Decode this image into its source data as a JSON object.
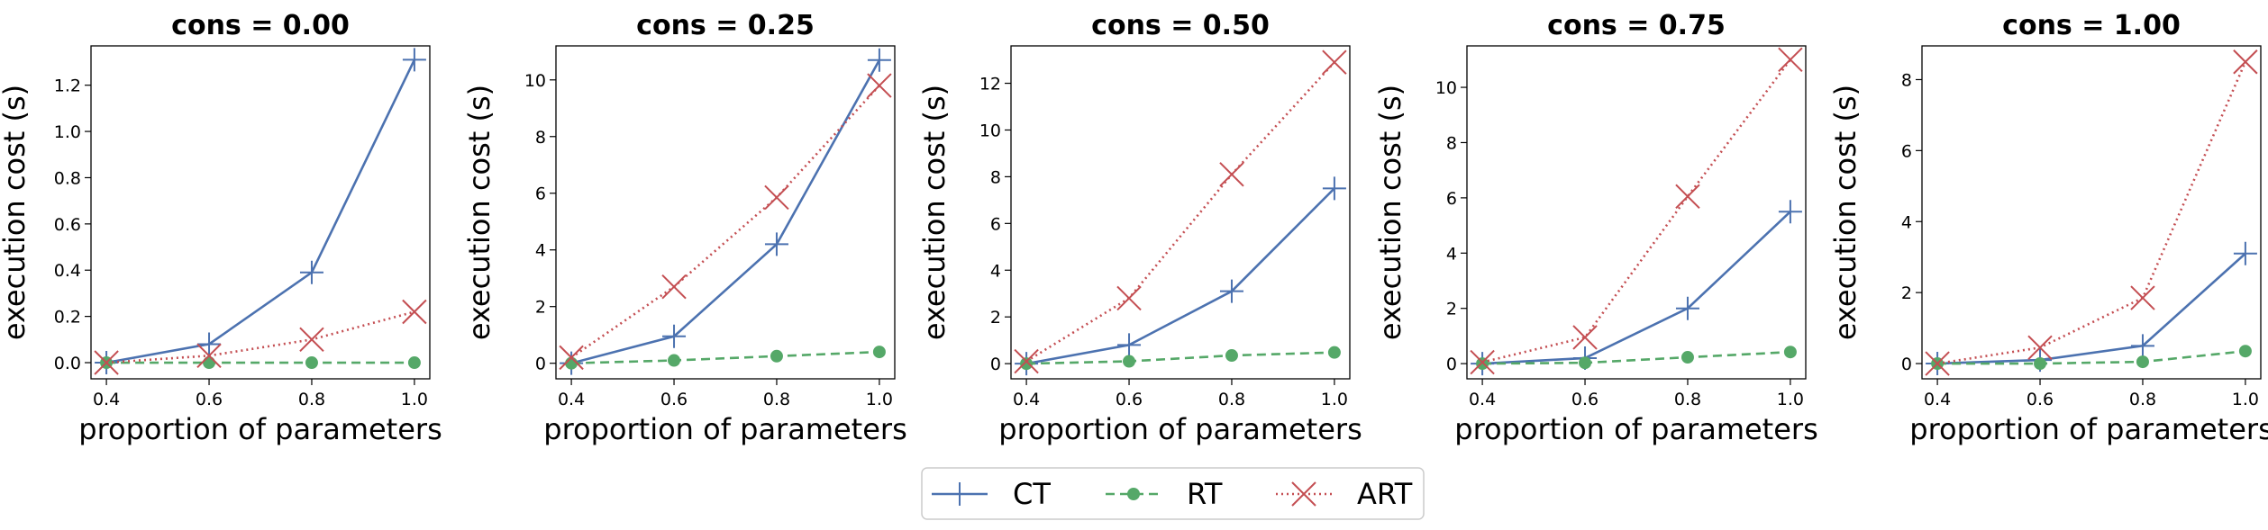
{
  "chart_data": [
    {
      "type": "line",
      "title": "cons = 0.00",
      "xlabel": "proportion of parameters",
      "ylabel": "execution cost (s)",
      "x": [
        0.4,
        0.6,
        0.8,
        1.0
      ],
      "xticks": [
        "0.4",
        "0.6",
        "0.8",
        "1.0"
      ],
      "xlim": [
        0.37,
        1.03
      ],
      "ylim": [
        -0.07,
        1.37
      ],
      "yticks": [
        "0.0",
        "0.2",
        "0.4",
        "0.6",
        "0.8",
        "1.0",
        "1.2"
      ],
      "ytick_values": [
        0,
        0.2,
        0.4,
        0.6,
        0.8,
        1.0,
        1.2
      ],
      "grid": false,
      "series": [
        {
          "name": "CT",
          "values": [
            0.0,
            0.08,
            0.39,
            1.31
          ]
        },
        {
          "name": "RT",
          "values": [
            0.0,
            0.0,
            0.0,
            0.0
          ]
        },
        {
          "name": "ART",
          "values": [
            0.0,
            0.03,
            0.1,
            0.22
          ]
        }
      ]
    },
    {
      "type": "line",
      "title": "cons = 0.25",
      "xlabel": "proportion of parameters",
      "ylabel": "execution cost (s)",
      "x": [
        0.4,
        0.6,
        0.8,
        1.0
      ],
      "xticks": [
        "0.4",
        "0.6",
        "0.8",
        "1.0"
      ],
      "xlim": [
        0.37,
        1.03
      ],
      "ylim": [
        -0.55,
        11.2
      ],
      "yticks": [
        "0",
        "2",
        "4",
        "6",
        "8",
        "10"
      ],
      "ytick_values": [
        0,
        2,
        4,
        6,
        8,
        10
      ],
      "grid": false,
      "series": [
        {
          "name": "CT",
          "values": [
            0.0,
            0.95,
            4.2,
            10.7
          ]
        },
        {
          "name": "RT",
          "values": [
            0.0,
            0.1,
            0.25,
            0.4
          ]
        },
        {
          "name": "ART",
          "values": [
            0.2,
            2.7,
            5.85,
            9.8
          ]
        }
      ]
    },
    {
      "type": "line",
      "title": "cons = 0.50",
      "xlabel": "proportion of parameters",
      "ylabel": "execution cost (s)",
      "x": [
        0.4,
        0.6,
        0.8,
        1.0
      ],
      "xticks": [
        "0.4",
        "0.6",
        "0.8",
        "1.0"
      ],
      "xlim": [
        0.37,
        1.03
      ],
      "ylim": [
        -0.65,
        13.6
      ],
      "yticks": [
        "0",
        "2",
        "4",
        "6",
        "8",
        "10",
        "12"
      ],
      "ytick_values": [
        0,
        2,
        4,
        6,
        8,
        10,
        12
      ],
      "grid": false,
      "series": [
        {
          "name": "CT",
          "values": [
            0.0,
            0.8,
            3.1,
            7.5
          ]
        },
        {
          "name": "RT",
          "values": [
            0.0,
            0.1,
            0.35,
            0.48
          ]
        },
        {
          "name": "ART",
          "values": [
            0.1,
            2.8,
            8.1,
            12.9
          ]
        }
      ]
    },
    {
      "type": "line",
      "title": "cons = 0.75",
      "xlabel": "proportion of parameters",
      "ylabel": "execution cost (s)",
      "x": [
        0.4,
        0.6,
        0.8,
        1.0
      ],
      "xticks": [
        "0.4",
        "0.6",
        "0.8",
        "1.0"
      ],
      "xlim": [
        0.37,
        1.03
      ],
      "ylim": [
        -0.55,
        11.5
      ],
      "yticks": [
        "0",
        "2",
        "4",
        "6",
        "8",
        "10"
      ],
      "ytick_values": [
        0,
        2,
        4,
        6,
        8,
        10
      ],
      "grid": false,
      "series": [
        {
          "name": "CT",
          "values": [
            0.0,
            0.2,
            2.0,
            5.5
          ]
        },
        {
          "name": "RT",
          "values": [
            0.0,
            0.03,
            0.23,
            0.42
          ]
        },
        {
          "name": "ART",
          "values": [
            0.05,
            0.95,
            6.05,
            11.0
          ]
        }
      ]
    },
    {
      "type": "line",
      "title": "cons = 1.00",
      "xlabel": "proportion of parameters",
      "ylabel": "execution cost (s)",
      "x": [
        0.4,
        0.6,
        0.8,
        1.0
      ],
      "xticks": [
        "0.4",
        "0.6",
        "0.8",
        "1.0"
      ],
      "xlim": [
        0.37,
        1.03
      ],
      "ylim": [
        -0.43,
        8.95
      ],
      "yticks": [
        "0",
        "2",
        "4",
        "6",
        "8"
      ],
      "ytick_values": [
        0,
        2,
        4,
        6,
        8
      ],
      "grid": false,
      "series": [
        {
          "name": "CT",
          "values": [
            0.0,
            0.1,
            0.5,
            3.1
          ]
        },
        {
          "name": "RT",
          "values": [
            0.0,
            0.0,
            0.05,
            0.35
          ]
        },
        {
          "name": "ART",
          "values": [
            0.0,
            0.45,
            1.85,
            8.5
          ]
        }
      ]
    }
  ],
  "legend": {
    "placement": "bottom-center",
    "entries": [
      {
        "name": "CT",
        "color": "#4c72b0",
        "marker": "plus",
        "linestyle": "solid"
      },
      {
        "name": "RT",
        "color": "#55a868",
        "marker": "circle",
        "linestyle": "dashed"
      },
      {
        "name": "ART",
        "color": "#c44e52",
        "marker": "x",
        "linestyle": "dotted"
      }
    ]
  },
  "colors": {
    "CT": "#4c72b0",
    "RT": "#55a868",
    "ART": "#c44e52"
  }
}
